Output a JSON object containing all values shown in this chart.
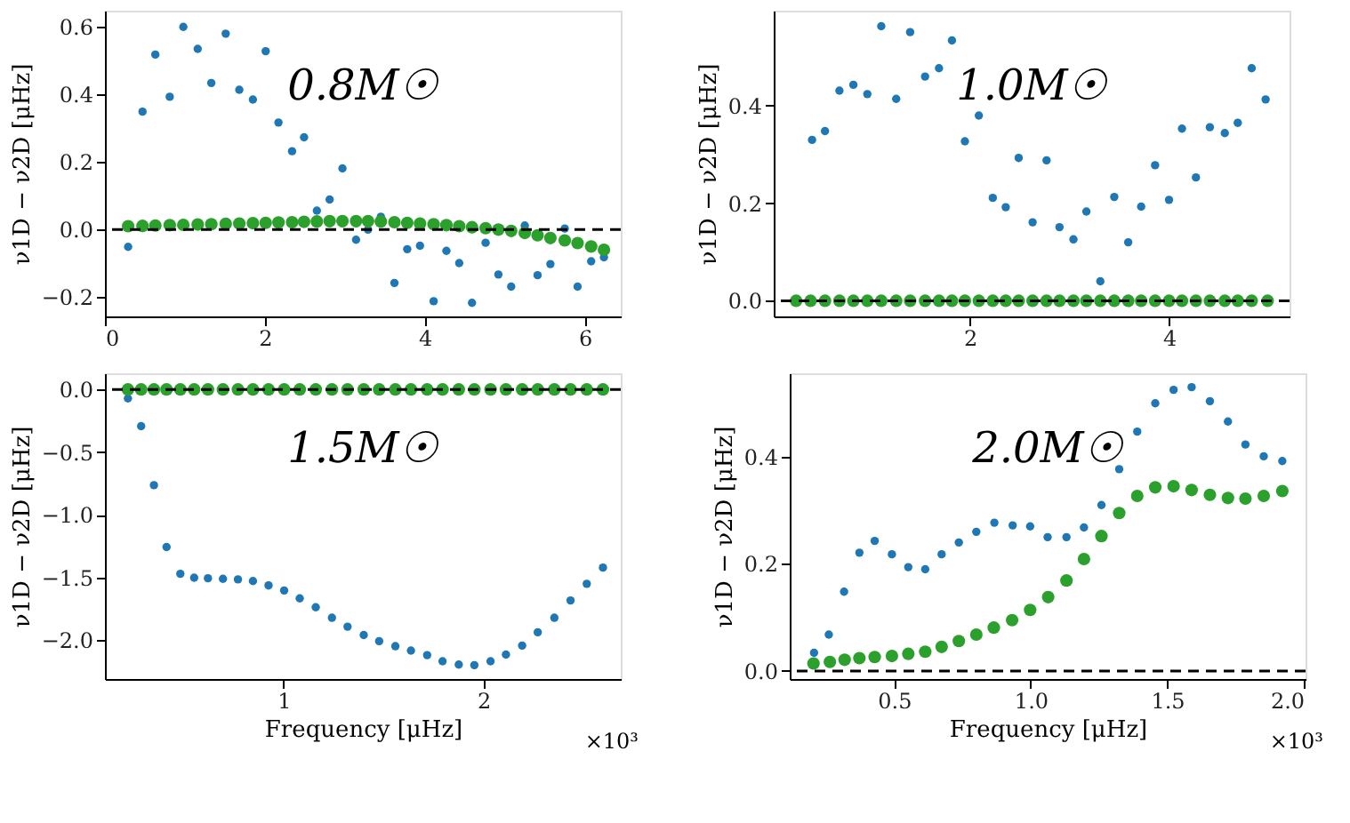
{
  "chart_data": [
    {
      "type": "scatter",
      "ylabel": "ν1D − ν2D [μHz]",
      "annotations": [
        "0.8M☉"
      ],
      "xlim": [
        0,
        6.45
      ],
      "xticks": [
        0,
        2,
        4,
        6
      ],
      "ylim": [
        -0.257,
        0.648
      ],
      "yticks": [
        -0.2,
        {
          "value": 0,
          "label": "0.0"
        },
        0.2,
        0.4,
        0.6
      ],
      "grid": false,
      "marker": "circle",
      "ref_lines": [
        {
          "axis": "y",
          "value": 0,
          "color": "#000000",
          "line_style": "dashed"
        }
      ],
      "series": [
        {
          "color": "#1f77b4",
          "x": [
            0.29,
            0.47,
            0.63,
            0.81,
            0.98,
            1.16,
            1.33,
            1.51,
            1.68,
            1.85,
            2.01,
            2.17,
            2.34,
            2.49,
            2.65,
            2.81,
            2.97,
            3.14,
            3.29,
            3.45,
            3.62,
            3.78,
            3.94,
            4.11,
            4.27,
            4.43,
            4.59,
            4.76,
            4.92,
            5.08,
            5.25,
            5.41,
            5.57,
            5.75,
            5.91,
            6.08,
            6.24
          ],
          "values": [
            -0.051,
            0.349,
            0.518,
            0.393,
            0.6,
            0.535,
            0.434,
            0.58,
            0.414,
            0.385,
            0.528,
            0.317,
            0.232,
            0.273,
            0.056,
            0.089,
            0.181,
            -0.03,
            0.0,
            0.038,
            -0.158,
            -0.058,
            -0.048,
            -0.212,
            -0.063,
            -0.099,
            -0.217,
            -0.039,
            -0.133,
            -0.169,
            0.012,
            -0.135,
            -0.102,
            0.003,
            -0.169,
            -0.094,
            -0.082
          ]
        },
        {
          "color": "#2ca02c",
          "x": [
            0.29,
            0.47,
            0.63,
            0.81,
            0.98,
            1.16,
            1.33,
            1.51,
            1.68,
            1.85,
            2.01,
            2.17,
            2.34,
            2.49,
            2.65,
            2.81,
            2.97,
            3.14,
            3.29,
            3.45,
            3.62,
            3.78,
            3.94,
            4.11,
            4.27,
            4.43,
            4.59,
            4.76,
            4.92,
            5.08,
            5.25,
            5.41,
            5.57,
            5.75,
            5.91,
            6.08,
            6.24
          ],
          "values": [
            0.01,
            0.011,
            0.012,
            0.013,
            0.014,
            0.015,
            0.016,
            0.017,
            0.018,
            0.019,
            0.02,
            0.021,
            0.022,
            0.023,
            0.024,
            0.025,
            0.025,
            0.025,
            0.025,
            0.024,
            0.022,
            0.02,
            0.018,
            0.016,
            0.013,
            0.01,
            0.007,
            0.004,
            0.0,
            -0.004,
            -0.01,
            -0.017,
            -0.025,
            -0.032,
            -0.04,
            -0.05,
            -0.06
          ]
        }
      ]
    },
    {
      "type": "scatter",
      "ylabel": "ν1D − ν2D [μHz]",
      "annotations": [
        "1.0M☉"
      ],
      "xlim": [
        0.03,
        5.21
      ],
      "xticks": [
        2,
        4
      ],
      "ylim": [
        -0.032,
        0.595
      ],
      "yticks": [
        {
          "value": 0,
          "label": "0.0"
        },
        0.2,
        0.4
      ],
      "grid": false,
      "marker": "circle",
      "ref_lines": [
        {
          "axis": "y",
          "value": 0,
          "color": "#000000",
          "line_style": "dashed"
        }
      ],
      "series": [
        {
          "color": "#1f77b4",
          "x": [
            0.415,
            0.545,
            0.69,
            0.83,
            0.97,
            1.11,
            1.26,
            1.4,
            1.55,
            1.69,
            1.82,
            1.95,
            2.09,
            2.23,
            2.36,
            2.49,
            2.63,
            2.77,
            2.9,
            3.04,
            3.17,
            3.31,
            3.45,
            3.59,
            3.72,
            3.86,
            4.0,
            4.13,
            4.27,
            4.41,
            4.56,
            4.69,
            4.83,
            4.97
          ],
          "values": [
            0.33,
            0.348,
            0.431,
            0.443,
            0.424,
            0.563,
            0.414,
            0.551,
            0.46,
            0.477,
            0.534,
            0.327,
            0.38,
            0.211,
            0.192,
            0.293,
            0.161,
            0.288,
            0.151,
            0.126,
            0.183,
            0.04,
            0.213,
            0.12,
            0.193,
            0.278,
            0.207,
            0.353,
            0.253,
            0.356,
            0.344,
            0.365,
            0.477,
            0.413
          ]
        },
        {
          "color": "#2ca02c",
          "x": [
            0.255,
            0.4,
            0.545,
            0.69,
            0.83,
            0.97,
            1.11,
            1.26,
            1.4,
            1.55,
            1.69,
            1.82,
            1.95,
            2.09,
            2.23,
            2.36,
            2.49,
            2.63,
            2.77,
            2.9,
            3.04,
            3.17,
            3.31,
            3.45,
            3.59,
            3.72,
            3.86,
            4.0,
            4.13,
            4.27,
            4.41,
            4.56,
            4.69,
            4.83,
            4.99
          ],
          "values": [
            0.0,
            0.0,
            0.0,
            0.0,
            0.0,
            0.0,
            0.0,
            0.0,
            0.0,
            0.0,
            0.0,
            0.0,
            0.0,
            0.0,
            0.0,
            0.0,
            0.0,
            0.0,
            0.0,
            0.0,
            0.0,
            0.0,
            0.0,
            0.0,
            0.0,
            0.0,
            0.0,
            0.0,
            0.0,
            0.0,
            0.0,
            0.0,
            0.0,
            0.0,
            0.0
          ]
        }
      ]
    },
    {
      "type": "scatter",
      "xlabel": "Frequency [μHz]",
      "ylabel": "ν1D − ν2D [μHz]",
      "annotations": [
        "1.5M☉",
        "×10³"
      ],
      "xlim": [
        0.107,
        2.686
      ],
      "xticks": [
        1,
        2
      ],
      "ylim": [
        -2.311,
        0.129
      ],
      "yticks": [
        {
          "value": -2,
          "label": "−2.0"
        },
        -1.5,
        {
          "value": -1,
          "label": "−1.0"
        },
        -0.5,
        {
          "value": 0,
          "label": "0.0"
        }
      ],
      "grid": false,
      "marker": "circle",
      "ref_lines": [
        {
          "axis": "y",
          "value": 0,
          "color": "#000000",
          "line_style": "dashed"
        }
      ],
      "series": [
        {
          "color": "#1f77b4",
          "x": [
            0.222,
            0.288,
            0.352,
            0.415,
            0.484,
            0.553,
            0.622,
            0.697,
            0.772,
            0.847,
            0.925,
            1.003,
            1.081,
            1.161,
            1.242,
            1.32,
            1.401,
            1.478,
            1.559,
            1.637,
            1.718,
            1.795,
            1.876,
            1.954,
            2.035,
            2.112,
            2.193,
            2.271,
            2.354,
            2.435,
            2.516,
            2.597
          ],
          "values": [
            -0.071,
            -0.293,
            -0.764,
            -1.258,
            -1.471,
            -1.502,
            -1.507,
            -1.511,
            -1.516,
            -1.529,
            -1.564,
            -1.604,
            -1.667,
            -1.738,
            -1.822,
            -1.893,
            -1.96,
            -2.009,
            -2.049,
            -2.084,
            -2.12,
            -2.169,
            -2.196,
            -2.2,
            -2.169,
            -2.116,
            -2.044,
            -1.938,
            -1.822,
            -1.684,
            -1.551,
            -1.422
          ]
        },
        {
          "color": "#2ca02c",
          "x": [
            0.222,
            0.288,
            0.352,
            0.415,
            0.484,
            0.553,
            0.622,
            0.697,
            0.772,
            0.847,
            0.925,
            1.003,
            1.081,
            1.161,
            1.242,
            1.32,
            1.401,
            1.478,
            1.559,
            1.637,
            1.718,
            1.795,
            1.876,
            1.954,
            2.035,
            2.112,
            2.193,
            2.271,
            2.354,
            2.435,
            2.516,
            2.597
          ],
          "values": [
            0.0,
            0.0,
            0.0,
            0.0,
            0.0,
            0.0,
            0.0,
            0.0,
            0.0,
            0.0,
            0.0,
            0.0,
            0.0,
            0.0,
            0.0,
            0.0,
            0.0,
            0.0,
            0.0,
            0.0,
            0.0,
            0.0,
            0.0,
            0.0,
            0.0,
            0.0,
            0.0,
            0.0,
            0.0,
            0.0,
            0.0,
            0.0
          ]
        }
      ]
    },
    {
      "type": "scatter",
      "xlabel": "Frequency [μHz]",
      "ylabel": "ν1D − ν2D [μHz]",
      "annotations": [
        "2.0M☉",
        "×10³"
      ],
      "xlim": [
        0.118,
        2.006
      ],
      "xticks": [
        0.5,
        {
          "value": 1,
          "label": "1.0"
        },
        1.5,
        {
          "value": 2,
          "label": "2.0"
        }
      ],
      "ylim": [
        -0.015,
        0.556
      ],
      "yticks": [
        {
          "value": 0,
          "label": "0.0"
        },
        0.2,
        0.4
      ],
      "grid": false,
      "marker": "circle",
      "ref_lines": [
        {
          "axis": "y",
          "value": 0,
          "color": "#000000",
          "line_style": "dashed"
        }
      ],
      "series": [
        {
          "color": "#1f77b4",
          "x": [
            0.207,
            0.261,
            0.317,
            0.373,
            0.429,
            0.492,
            0.552,
            0.614,
            0.674,
            0.737,
            0.801,
            0.867,
            0.934,
            0.998,
            1.062,
            1.131,
            1.195,
            1.259,
            1.324,
            1.39,
            1.456,
            1.523,
            1.589,
            1.656,
            1.722,
            1.786,
            1.853,
            1.921
          ],
          "values": [
            0.034,
            0.068,
            0.148,
            0.221,
            0.243,
            0.218,
            0.194,
            0.19,
            0.218,
            0.24,
            0.26,
            0.277,
            0.272,
            0.27,
            0.25,
            0.25,
            0.268,
            0.31,
            0.377,
            0.447,
            0.5,
            0.525,
            0.53,
            0.504,
            0.466,
            0.423,
            0.401,
            0.392
          ]
        },
        {
          "color": "#2ca02c",
          "x": [
            0.205,
            0.265,
            0.319,
            0.373,
            0.429,
            0.492,
            0.552,
            0.614,
            0.674,
            0.737,
            0.801,
            0.865,
            0.932,
            0.998,
            1.064,
            1.131,
            1.195,
            1.259,
            1.324,
            1.39,
            1.456,
            1.523,
            1.589,
            1.656,
            1.722,
            1.786,
            1.853,
            1.921
          ],
          "values": [
            0.014,
            0.017,
            0.021,
            0.024,
            0.026,
            0.028,
            0.032,
            0.036,
            0.045,
            0.056,
            0.068,
            0.081,
            0.095,
            0.114,
            0.138,
            0.169,
            0.209,
            0.252,
            0.295,
            0.327,
            0.343,
            0.345,
            0.338,
            0.329,
            0.323,
            0.322,
            0.327,
            0.336
          ]
        }
      ]
    }
  ]
}
